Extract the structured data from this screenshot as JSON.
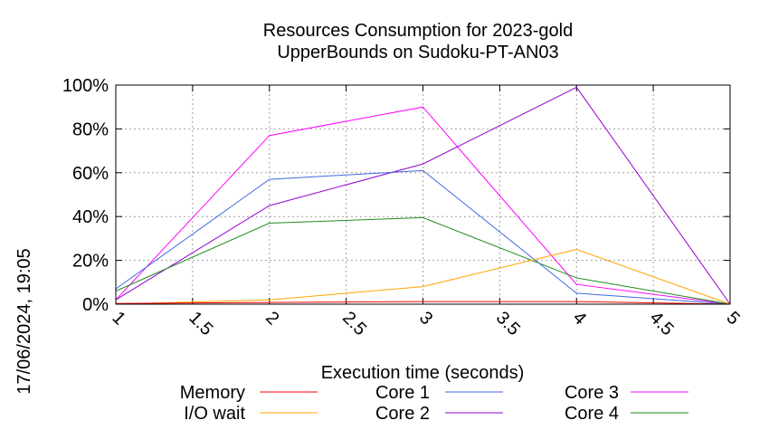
{
  "chart_data": {
    "type": "line",
    "title": [
      "Resources Consumption for 2023-gold",
      "UpperBounds on Sudoku-PT-AN03"
    ],
    "xlabel": "Execution time (seconds)",
    "ylabel": "",
    "side_label": "17/06/2024, 19:05",
    "xlim": [
      1,
      5
    ],
    "ylim": [
      0,
      100
    ],
    "x_ticks": [
      1,
      1.5,
      2,
      2.5,
      3,
      3.5,
      4,
      4.5,
      5
    ],
    "x_tick_labels": [
      "1",
      "1.5",
      "2",
      "2.5",
      "3",
      "3.5",
      "4",
      "4.5",
      "5"
    ],
    "y_ticks": [
      0,
      20,
      40,
      60,
      80,
      100
    ],
    "y_tick_labels": [
      "0%",
      "20%",
      "40%",
      "60%",
      "80%",
      "100%"
    ],
    "grid": true,
    "legend_position": "bottom",
    "x": [
      1,
      2,
      3,
      4,
      5
    ],
    "series": [
      {
        "name": "Memory",
        "color": "#ff0000",
        "values": [
          0.3,
          0.8,
          1.2,
          1.2,
          0
        ]
      },
      {
        "name": "I/O wait",
        "color": "#ffa500",
        "values": [
          0,
          2,
          8,
          25,
          0
        ]
      },
      {
        "name": "Core 1",
        "color": "#4169e1",
        "values": [
          7,
          57,
          61,
          5,
          0
        ]
      },
      {
        "name": "Core 2",
        "color": "#9400d3",
        "values": [
          2,
          45,
          64,
          99,
          0
        ]
      },
      {
        "name": "Core 3",
        "color": "#ff00ff",
        "values": [
          2,
          77,
          90,
          9,
          0
        ]
      },
      {
        "name": "Core 4",
        "color": "#228b22",
        "values": [
          6,
          37,
          39.5,
          12,
          0
        ]
      }
    ]
  }
}
